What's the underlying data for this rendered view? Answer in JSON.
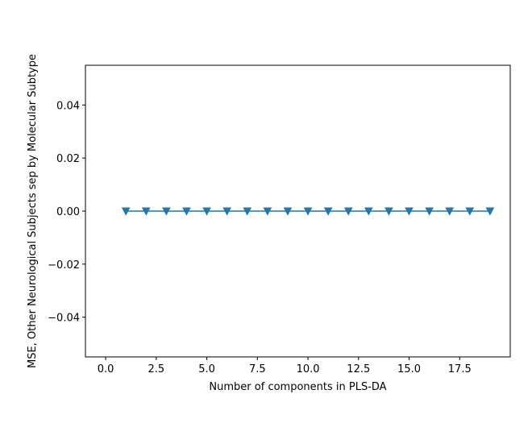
{
  "chart_data": {
    "type": "line",
    "title": "",
    "xlabel": "Number of components in PLS-DA",
    "ylabel": "MSE, Other Neurological Subjects sep by Molecular Subtype",
    "xlim": [
      -1.0,
      20.0
    ],
    "ylim": [
      -0.055,
      0.055
    ],
    "x_ticks": [
      0.0,
      2.5,
      5.0,
      7.5,
      10.0,
      12.5,
      15.0,
      17.5
    ],
    "x_tick_labels": [
      "0.0",
      "2.5",
      "5.0",
      "7.5",
      "10.0",
      "12.5",
      "15.0",
      "17.5"
    ],
    "y_ticks": [
      0.04,
      0.02,
      0.0,
      -0.02,
      -0.04
    ],
    "y_tick_labels": [
      "0.04",
      "0.02",
      "0.00",
      "−0.02",
      "−0.04"
    ],
    "grid": false,
    "marker": "triangle-down",
    "series": [
      {
        "color": "#1f77b4",
        "x": [
          1,
          2,
          3,
          4,
          5,
          6,
          7,
          8,
          9,
          10,
          11,
          12,
          13,
          14,
          15,
          16,
          17,
          18,
          19
        ],
        "y": [
          0,
          0,
          0,
          0,
          0,
          0,
          0,
          0,
          0,
          0,
          0,
          0,
          0,
          0,
          0,
          0,
          0,
          0,
          0
        ]
      }
    ]
  }
}
